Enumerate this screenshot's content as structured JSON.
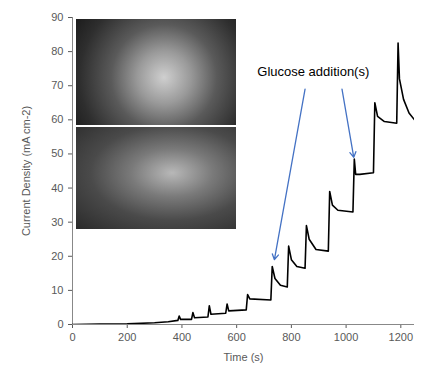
{
  "chart_data": {
    "type": "line",
    "x_label": "Time (s)",
    "y_label": "Current Density (mA cm-2)",
    "xlim": [
      0,
      1250
    ],
    "xticks": [
      0,
      200,
      400,
      600,
      800,
      1000,
      1200
    ],
    "ylim": [
      0,
      90
    ],
    "yticks": [
      0,
      10,
      20,
      30,
      40,
      50,
      60,
      70,
      80,
      90
    ],
    "grid": false,
    "color": "#000000",
    "x": [
      0,
      100,
      200,
      300,
      350,
      385,
      390,
      395,
      435,
      440,
      446,
      495,
      500,
      506,
      560,
      565,
      571,
      635,
      640,
      648,
      725,
      730,
      740,
      760,
      785,
      790,
      800,
      820,
      850,
      855,
      865,
      890,
      935,
      940,
      950,
      970,
      1025,
      1030,
      1035,
      1050,
      1100,
      1105,
      1115,
      1140,
      1185,
      1190,
      1195,
      1210,
      1230,
      1250
    ],
    "values": [
      0,
      0.1,
      0.2,
      0.5,
      0.8,
      1.2,
      2.5,
      1.5,
      1.5,
      3.5,
      2,
      2.2,
      5.5,
      3,
      3.3,
      6,
      4,
      4.3,
      8.8,
      7.5,
      7.2,
      17,
      13.5,
      11.5,
      11,
      23,
      19,
      17,
      16.5,
      29,
      25,
      22,
      21.5,
      39,
      35,
      33.5,
      33,
      48.5,
      44,
      44,
      44.5,
      65,
      61,
      59.5,
      59,
      82.5,
      72,
      66,
      62,
      60
    ],
    "annotation": {
      "text": "Glucose addition(s)",
      "x": 880,
      "y": 74,
      "arrows": [
        {
          "from": [
            850,
            69
          ],
          "to": [
            738,
            19
          ]
        },
        {
          "from": [
            985,
            69
          ],
          "to": [
            1028,
            49
          ]
        }
      ]
    }
  }
}
